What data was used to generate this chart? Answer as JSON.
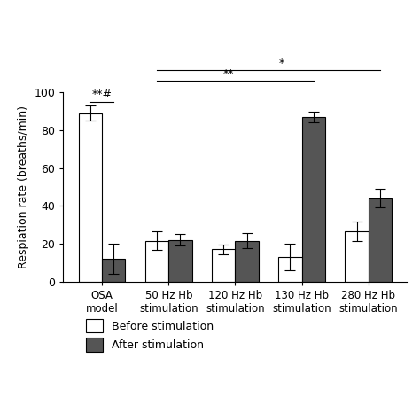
{
  "categories": [
    "OSA\nmodel",
    "50 Hz Hb\nstimulation",
    "120 Hz Hb\nstimulation",
    "130 Hz Hb\nstimulation",
    "280 Hz Hb\nstimulation"
  ],
  "before_values": [
    89,
    21.5,
    17,
    13,
    26.5
  ],
  "after_values": [
    12,
    22,
    21.5,
    87,
    44
  ],
  "before_errors": [
    4,
    5,
    2.5,
    7,
    5
  ],
  "after_errors": [
    8,
    3,
    4,
    3,
    5
  ],
  "bar_width": 0.35,
  "before_color": "#ffffff",
  "after_color": "#555555",
  "edge_color": "#000000",
  "ylabel": "Respiation rate (breaths/min)",
  "ylim": [
    0,
    100
  ],
  "yticks": [
    0,
    20,
    40,
    60,
    80,
    100
  ],
  "legend_labels": [
    "Before stimulation",
    "After stimulation"
  ],
  "background_color": "#ffffff",
  "capsize": 4,
  "fontsize": 9
}
